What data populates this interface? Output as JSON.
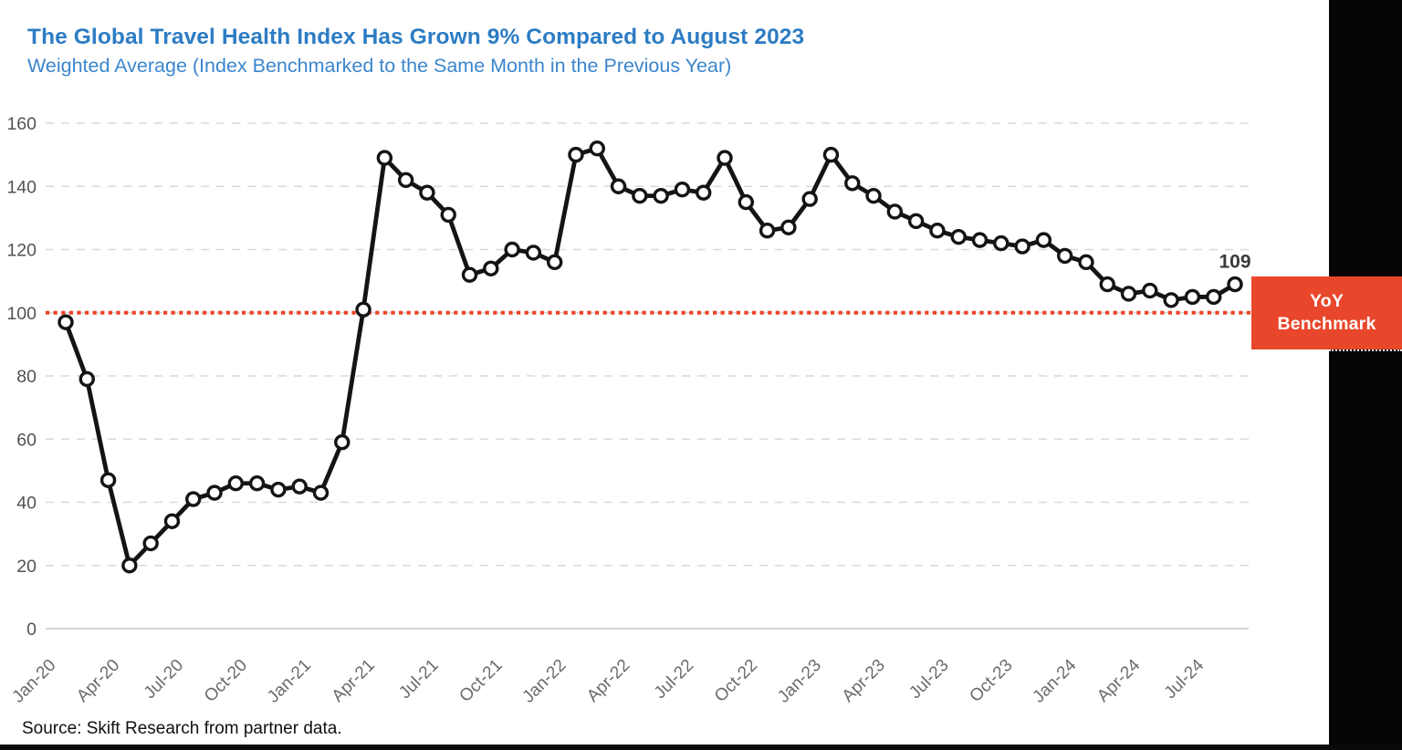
{
  "header": {
    "title": "The Global Travel Health Index Has Grown 9% Compared to August 2023",
    "subtitle": "Weighted Average (Index Benchmarked to the Same Month in the Previous Year)"
  },
  "benchmark": {
    "line1": "YoY",
    "line2": "Benchmark",
    "value": 100
  },
  "footer": {
    "source": "Source: Skift Research from partner data."
  },
  "colors": {
    "title_blue": "#2d7cc4",
    "subtitle_blue": "#3b86cd",
    "benchmark_red": "#e8472b",
    "benchmark_line_red": "#ee4223",
    "line_black": "#141414",
    "gridline_gray": "#d9d9d9",
    "axis_label_gray": "#6b6b6b",
    "annotation_gray": "#3a3a3a"
  },
  "chart_data": {
    "type": "line",
    "title": "The Global Travel Health Index Has Grown 9% Compared to August 2023",
    "subtitle": "Weighted Average (Index Benchmarked to the Same Month in the Previous Year)",
    "series_name": "Global Travel Health Index (Weighted Average)",
    "x": [
      "Jan-20",
      "Feb-20",
      "Mar-20",
      "Apr-20",
      "May-20",
      "Jun-20",
      "Jul-20",
      "Aug-20",
      "Sep-20",
      "Oct-20",
      "Nov-20",
      "Dec-20",
      "Jan-21",
      "Feb-21",
      "Mar-21",
      "Apr-21",
      "May-21",
      "Jun-21",
      "Jul-21",
      "Aug-21",
      "Sep-21",
      "Oct-21",
      "Nov-21",
      "Dec-21",
      "Jan-22",
      "Feb-22",
      "Mar-22",
      "Apr-22",
      "May-22",
      "Jun-22",
      "Jul-22",
      "Aug-22",
      "Sep-22",
      "Oct-22",
      "Nov-22",
      "Dec-22",
      "Jan-23",
      "Feb-23",
      "Mar-23",
      "Apr-23",
      "May-23",
      "Jun-23",
      "Jul-23",
      "Aug-23",
      "Sep-23",
      "Oct-23",
      "Nov-23",
      "Dec-23",
      "Jan-24",
      "Feb-24",
      "Mar-24",
      "Apr-24",
      "May-24",
      "Jun-24",
      "Jul-24",
      "Aug-24"
    ],
    "values": [
      97,
      79,
      47,
      20,
      27,
      34,
      41,
      43,
      46,
      46,
      44,
      45,
      43,
      59,
      101,
      149,
      142,
      138,
      131,
      112,
      114,
      120,
      119,
      116,
      150,
      152,
      140,
      137,
      137,
      139,
      138,
      149,
      135,
      126,
      127,
      136,
      150,
      141,
      137,
      132,
      129,
      126,
      124,
      123,
      122,
      121,
      123,
      118,
      116,
      109,
      106,
      107,
      104,
      105,
      105,
      109
    ],
    "ylim": [
      0,
      160
    ],
    "yticks": [
      0,
      20,
      40,
      60,
      80,
      100,
      120,
      140,
      160
    ],
    "xtick_every": 3,
    "grid": "horizontal-dashed",
    "legend": "none",
    "marker": "circle-open",
    "benchmark": {
      "value": 100,
      "label": "YoY Benchmark",
      "style": "dotted"
    },
    "last_point_label": {
      "x": "Aug-24",
      "value": "109"
    }
  }
}
